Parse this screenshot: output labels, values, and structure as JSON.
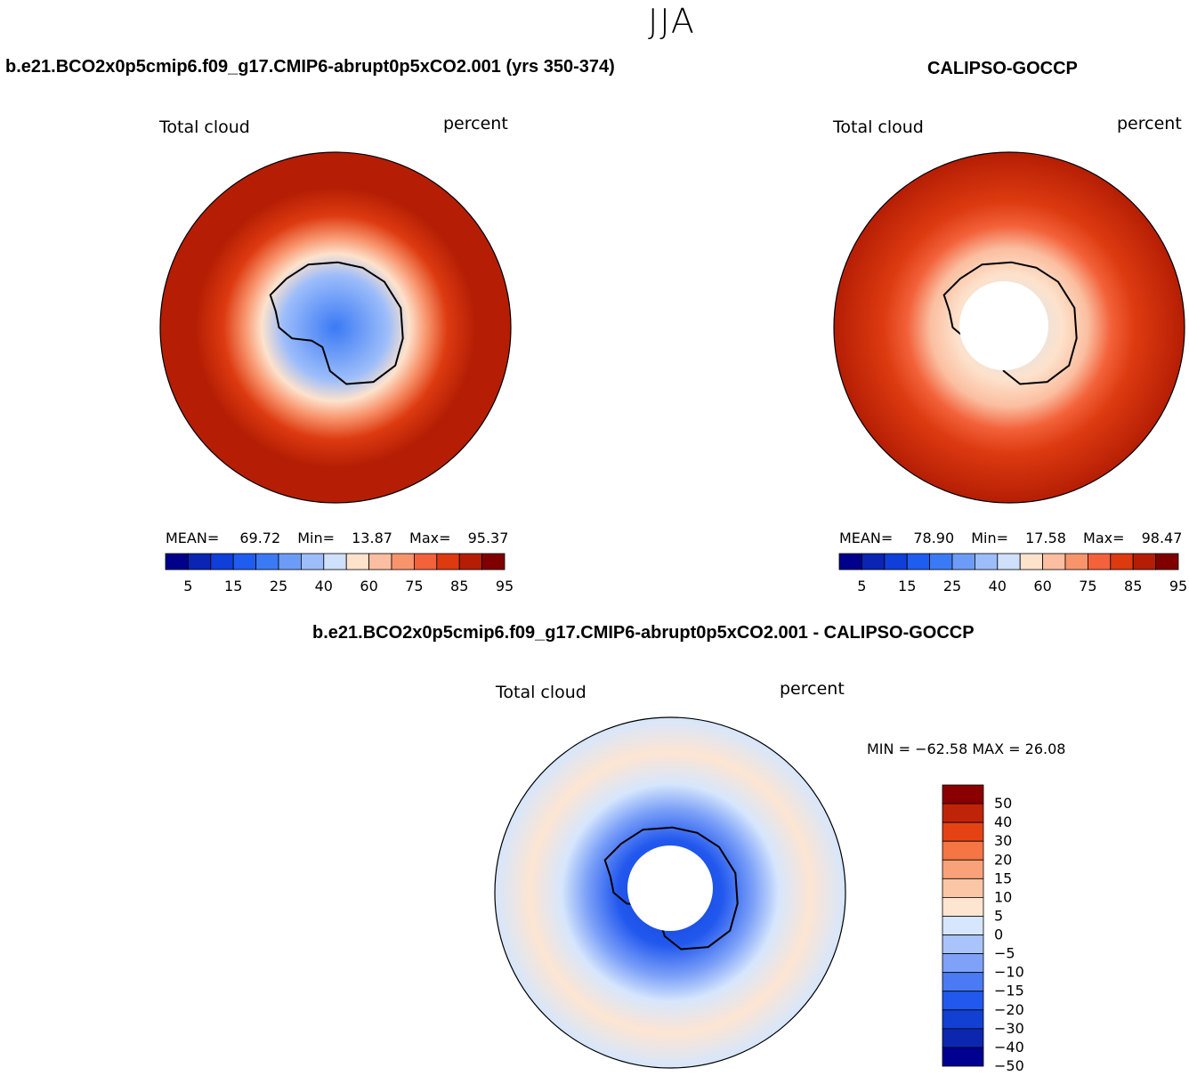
{
  "season": "JJA",
  "panels": [
    {
      "id": "model",
      "title": "b.e21.BCO2x0p5cmip6.f09_g17.CMIP6-abrupt0p5xCO2.001 (yrs 350-374)",
      "variable": "Total cloud",
      "units": "percent",
      "stats": {
        "mean_label": "MEAN=",
        "mean": "69.72",
        "min_label": "Min=",
        "min": "13.87",
        "max_label": "Max=",
        "max": "95.37"
      }
    },
    {
      "id": "obs",
      "title": "CALIPSO-GOCCP",
      "variable": "Total cloud",
      "units": "percent",
      "stats": {
        "mean_label": "MEAN=",
        "mean": "78.90",
        "min_label": "Min=",
        "min": "17.58",
        "max_label": "Max=",
        "max": "98.47"
      }
    },
    {
      "id": "diff",
      "title": "b.e21.BCO2x0p5cmip6.f09_g17.CMIP6-abrupt0p5xCO2.001 - CALIPSO-GOCCP",
      "variable": "Total cloud",
      "units": "percent",
      "minmax": "MIN = −62.58  MAX =   26.08"
    }
  ],
  "chart_data": [
    {
      "type": "heatmap",
      "projection": "south-polar-stereographic",
      "title": "b.e21.BCO2x0p5cmip6.f09_g17.CMIP6-abrupt0p5xCO2.001 (yrs 350-374)",
      "variable": "Total cloud",
      "units": "percent",
      "mean": 69.72,
      "min": 13.87,
      "max": 95.37,
      "colorbar_levels": [
        5,
        10,
        15,
        20,
        25,
        30,
        40,
        50,
        60,
        70,
        75,
        80,
        85,
        90,
        95
      ],
      "colorbar_tick_labels": [
        "5",
        "15",
        "25",
        "40",
        "60",
        "75",
        "85",
        "95"
      ],
      "colorbar_orientation": "horizontal"
    },
    {
      "type": "heatmap",
      "projection": "south-polar-stereographic",
      "title": "CALIPSO-GOCCP",
      "variable": "Total cloud",
      "units": "percent",
      "mean": 78.9,
      "min": 17.58,
      "max": 98.47,
      "colorbar_levels": [
        5,
        10,
        15,
        20,
        25,
        30,
        40,
        50,
        60,
        70,
        75,
        80,
        85,
        90,
        95
      ],
      "colorbar_tick_labels": [
        "5",
        "15",
        "25",
        "40",
        "60",
        "75",
        "85",
        "95"
      ],
      "colorbar_orientation": "horizontal",
      "missing_region": "polar hole south of ~82S"
    },
    {
      "type": "heatmap",
      "projection": "south-polar-stereographic",
      "title": "b.e21.BCO2x0p5cmip6.f09_g17.CMIP6-abrupt0p5xCO2.001 - CALIPSO-GOCCP",
      "variable": "Total cloud",
      "units": "percent",
      "min": -62.58,
      "max": 26.08,
      "colorbar_levels": [
        -50,
        -40,
        -30,
        -20,
        -15,
        -10,
        -5,
        0,
        5,
        10,
        15,
        20,
        30,
        40,
        50
      ],
      "colorbar_tick_labels": [
        "50",
        "40",
        "30",
        "20",
        "15",
        "10",
        "5",
        "0",
        "−5",
        "−10",
        "−15",
        "−20",
        "−30",
        "−40",
        "−50"
      ],
      "colorbar_orientation": "vertical"
    }
  ],
  "colors": {
    "scale": [
      "#00008a",
      "#0a24b4",
      "#0f3ed9",
      "#1f5cf0",
      "#3a7af5",
      "#6c9cf7",
      "#9dbdfa",
      "#cfe0fb",
      "#fde2cc",
      "#fbbea0",
      "#f8946c",
      "#f3623a",
      "#dd3a10",
      "#b51e04",
      "#800000"
    ],
    "diff_scale": [
      "#000090",
      "#0d26b0",
      "#1240d2",
      "#2258ee",
      "#4a7bf5",
      "#7ea2f8",
      "#a9c4fb",
      "#d6e6fc",
      "#fde5d2",
      "#fbc6a6",
      "#f9a27a",
      "#f57544",
      "#e64315",
      "#c02408",
      "#8a0000"
    ]
  }
}
